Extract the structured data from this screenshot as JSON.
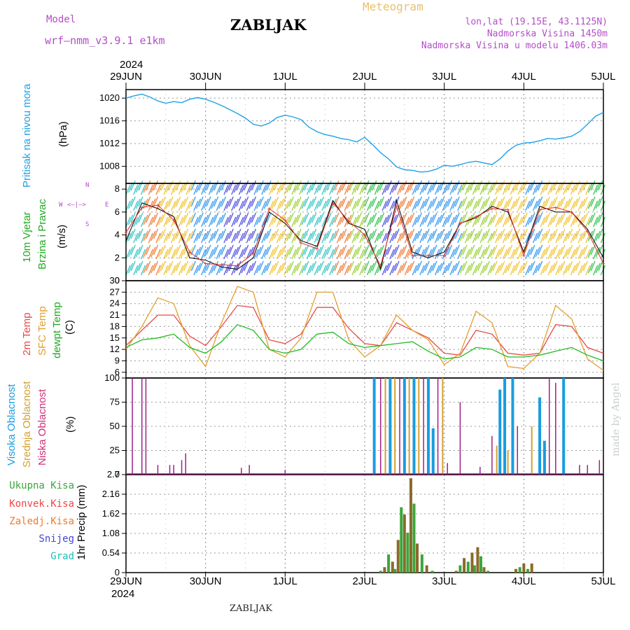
{
  "header": {
    "model_label": "Model",
    "model_name": "wrf—nmm_v3.9.1  e1km",
    "station": "ZABLJAK",
    "app_title": "Meteogram",
    "coords": "lon,lat (19.15E, 43.1125N)",
    "elevation": "Nadmorska Visina 1450m",
    "model_elevation": "Nadmorska Visina u modelu 1406.03m",
    "year": "2024",
    "footer_station": "ZABLJAK",
    "credit": "made by Angel"
  },
  "colors": {
    "pressure": "#1fa2e6",
    "wind_black": "#000000",
    "wind_red": "#e03030",
    "temp2m": "#e84a4a",
    "sfc_temp": "#e0a030",
    "dewpt": "#22bb22",
    "cloud_high": "#1a9ce0",
    "cloud_mid": "#d4a030",
    "cloud_low": "#a0208a",
    "label_magenta": "#b44ec8",
    "precip_total": "#3aa63a",
    "precip_conv": "#f04545",
    "precip_strat": "#f07a2a",
    "snow": "#4444dd",
    "graupel": "#22bbbb",
    "precip_brown": "#8a6a2a"
  },
  "panels": {
    "pressure": {
      "label1": "Pritisak na nivou mora",
      "unit": "(hPa)"
    },
    "wind": {
      "label1": "10m Vjetar",
      "label2": "Brzina i Pravac",
      "unit": "(m/s)",
      "compass_w": "W",
      "compass_e": "E",
      "compass_n": "N",
      "compass_s": "S"
    },
    "temp": {
      "label1": "2m Temp",
      "label2": "SFC Temp",
      "label3": "dewpt Temp",
      "unit": "(C)"
    },
    "cloud": {
      "label1": "Visoka Oblacnost",
      "label2": "Srednja Oblacnost",
      "label3": "Niska Oblacnost",
      "unit": "(%)"
    },
    "precip": {
      "legend": [
        "Ukupna Kisa",
        "Konvek.Kisa",
        "Zaledj.Kisa",
        "Snijeg",
        "Grad"
      ],
      "unit": "1hr Precip (mm)"
    }
  },
  "chart_data": [
    {
      "type": "line",
      "name": "pressure",
      "x_ticks": [
        "29JUN",
        "30JUN",
        "1JUL",
        "2JUL",
        "3JUL",
        "4JUL",
        "5JUL"
      ],
      "ylabel": "Pritisak na nivou mora (hPa)",
      "ylim": [
        1005,
        1021.5
      ],
      "y_ticks": [
        "1008",
        "1012",
        "1016",
        "1020"
      ],
      "x": [
        0,
        0.1,
        0.2,
        0.3,
        0.4,
        0.5,
        0.6,
        0.7,
        0.8,
        0.9,
        1.0,
        1.1,
        1.2,
        1.3,
        1.4,
        1.5,
        1.6,
        1.7,
        1.8,
        1.9,
        2.0,
        2.1,
        2.2,
        2.3,
        2.4,
        2.5,
        2.6,
        2.7,
        2.8,
        2.9,
        3.0,
        3.1,
        3.2,
        3.3,
        3.4,
        3.5,
        3.6,
        3.7,
        3.8,
        3.9,
        4.0,
        4.1,
        4.2,
        4.3,
        4.4,
        4.5,
        4.6,
        4.7,
        4.8,
        4.9,
        5.0,
        5.1,
        5.2,
        5.3,
        5.4,
        5.5,
        5.6,
        5.7,
        5.8,
        5.9,
        6.0
      ],
      "series": [
        {
          "values": [
            1020.0,
            1020.4,
            1020.7,
            1020.2,
            1019.5,
            1019.1,
            1019.4,
            1019.2,
            1019.8,
            1020.1,
            1019.8,
            1019.3,
            1018.7,
            1018.0,
            1017.3,
            1016.5,
            1015.4,
            1015.1,
            1015.6,
            1016.6,
            1017.0,
            1016.7,
            1016.2,
            1014.9,
            1014.1,
            1013.6,
            1013.3,
            1012.9,
            1012.7,
            1012.3,
            1013.1,
            1011.8,
            1010.4,
            1009.3,
            1007.9,
            1007.4,
            1007.3,
            1007.0,
            1007.1,
            1007.5,
            1008.2,
            1008.0,
            1008.3,
            1008.7,
            1008.9,
            1008.6,
            1008.3,
            1009.3,
            1010.7,
            1011.7,
            1012.1,
            1012.2,
            1012.5,
            1012.9,
            1012.8,
            1013.0,
            1013.3,
            1014.1,
            1015.4,
            1016.8,
            1017.5
          ]
        }
      ]
    },
    {
      "type": "line",
      "name": "wind",
      "ylabel": "Brzina i Pravac (m/s)",
      "ylim": [
        0,
        8.5
      ],
      "y_ticks": [
        "0",
        "2",
        "4",
        "6",
        "8"
      ],
      "x": [
        0,
        0.2,
        0.4,
        0.6,
        0.8,
        1.0,
        1.2,
        1.4,
        1.6,
        1.8,
        2.0,
        2.2,
        2.4,
        2.6,
        2.8,
        3.0,
        3.2,
        3.4,
        3.6,
        3.8,
        4.0,
        4.2,
        4.4,
        4.6,
        4.8,
        5.0,
        5.2,
        5.4,
        5.6,
        5.8,
        6.0
      ],
      "series": [
        {
          "values": [
            3.5,
            6.8,
            6.3,
            5.6,
            2.0,
            1.8,
            1.2,
            1.0,
            2.0,
            6.0,
            5.0,
            3.5,
            3.0,
            7.0,
            5.0,
            4.5,
            1.0,
            7.0,
            2.5,
            2.0,
            2.5,
            5.0,
            5.5,
            6.5,
            6.0,
            2.5,
            6.5,
            6.0,
            6.0,
            4.5,
            2.0
          ]
        },
        {
          "values": [
            4.2,
            6.4,
            6.6,
            5.3,
            2.5,
            1.5,
            1.4,
            1.3,
            2.4,
            6.3,
            5.3,
            3.3,
            2.8,
            6.8,
            5.2,
            4.0,
            1.3,
            6.5,
            2.2,
            2.2,
            2.2,
            5.0,
            5.6,
            6.3,
            6.2,
            2.2,
            6.2,
            6.4,
            6.0,
            4.3,
            1.5
          ]
        }
      ]
    },
    {
      "type": "line",
      "name": "temperature",
      "ylabel": "(C)",
      "ylim": [
        4.5,
        30
      ],
      "y_ticks": [
        "6",
        "9",
        "12",
        "15",
        "18",
        "21",
        "24",
        "27",
        "30"
      ],
      "x": [
        0,
        0.2,
        0.4,
        0.6,
        0.8,
        1.0,
        1.2,
        1.4,
        1.6,
        1.8,
        2.0,
        2.2,
        2.4,
        2.6,
        2.8,
        3.0,
        3.2,
        3.4,
        3.6,
        3.8,
        4.0,
        4.2,
        4.4,
        4.6,
        4.8,
        5.0,
        5.2,
        5.4,
        5.6,
        5.8,
        6.0
      ],
      "series": [
        {
          "name": "2m Temp",
          "values": [
            13,
            17,
            21,
            21,
            15.5,
            13,
            18,
            23.5,
            23,
            14.5,
            13.5,
            16,
            23,
            23,
            17.5,
            13.5,
            13.0,
            19,
            17,
            15,
            11,
            10.5,
            17,
            16,
            11,
            10.5,
            11,
            18.5,
            18,
            12.5,
            11
          ]
        },
        {
          "name": "SFC Temp",
          "values": [
            12,
            18,
            25.5,
            24,
            13,
            7.5,
            19,
            28.5,
            27,
            12,
            10,
            15,
            27,
            27,
            14.5,
            10,
            13,
            21,
            17,
            14.5,
            8,
            11,
            22,
            19,
            7.5,
            7,
            11,
            23.5,
            20,
            9.5,
            6.5
          ]
        },
        {
          "name": "dewpt Temp",
          "values": [
            12.5,
            14.5,
            15,
            16,
            12.5,
            11,
            14,
            18.5,
            17,
            12,
            11,
            12,
            16,
            16.5,
            13.5,
            12.5,
            13.0,
            13.5,
            14,
            11.5,
            9.5,
            10,
            12.5,
            12,
            10,
            10,
            10.5,
            11.5,
            12.5,
            10.5,
            9
          ]
        }
      ]
    },
    {
      "type": "bar",
      "name": "cloud_cover",
      "ylabel": "(%)",
      "ylim": [
        0,
        100
      ],
      "y_ticks": [
        "0",
        "25",
        "50",
        "75",
        "100"
      ]
    },
    {
      "type": "bar",
      "name": "precipitation",
      "ylabel": "1hr Precip (mm)",
      "ylim": [
        0,
        2.7
      ],
      "y_ticks": [
        "0",
        "0.54",
        "1.08",
        "1.62",
        "2.16",
        "2.7"
      ],
      "series": [
        {
          "name": "Ukupna Kisa",
          "x": [
            3.2,
            3.25,
            3.3,
            3.35,
            3.38,
            3.42,
            3.46,
            3.5,
            3.54,
            3.58,
            3.62,
            3.66,
            3.72,
            3.78,
            3.85,
            4.15,
            4.2,
            4.25,
            4.3,
            4.35,
            4.38,
            4.42,
            4.46,
            4.5,
            4.55,
            4.9,
            4.95,
            5.0,
            5.05,
            5.1
          ],
          "values": [
            0.05,
            0.15,
            0.5,
            0.3,
            0.1,
            0.9,
            1.8,
            1.6,
            1.1,
            2.6,
            1.9,
            0.8,
            0.5,
            0.2,
            0.05,
            0.05,
            0.2,
            0.4,
            0.3,
            0.55,
            0.2,
            0.7,
            0.45,
            0.15,
            0.05,
            0.1,
            0.15,
            0.25,
            0.1,
            0.25
          ]
        }
      ]
    }
  ]
}
